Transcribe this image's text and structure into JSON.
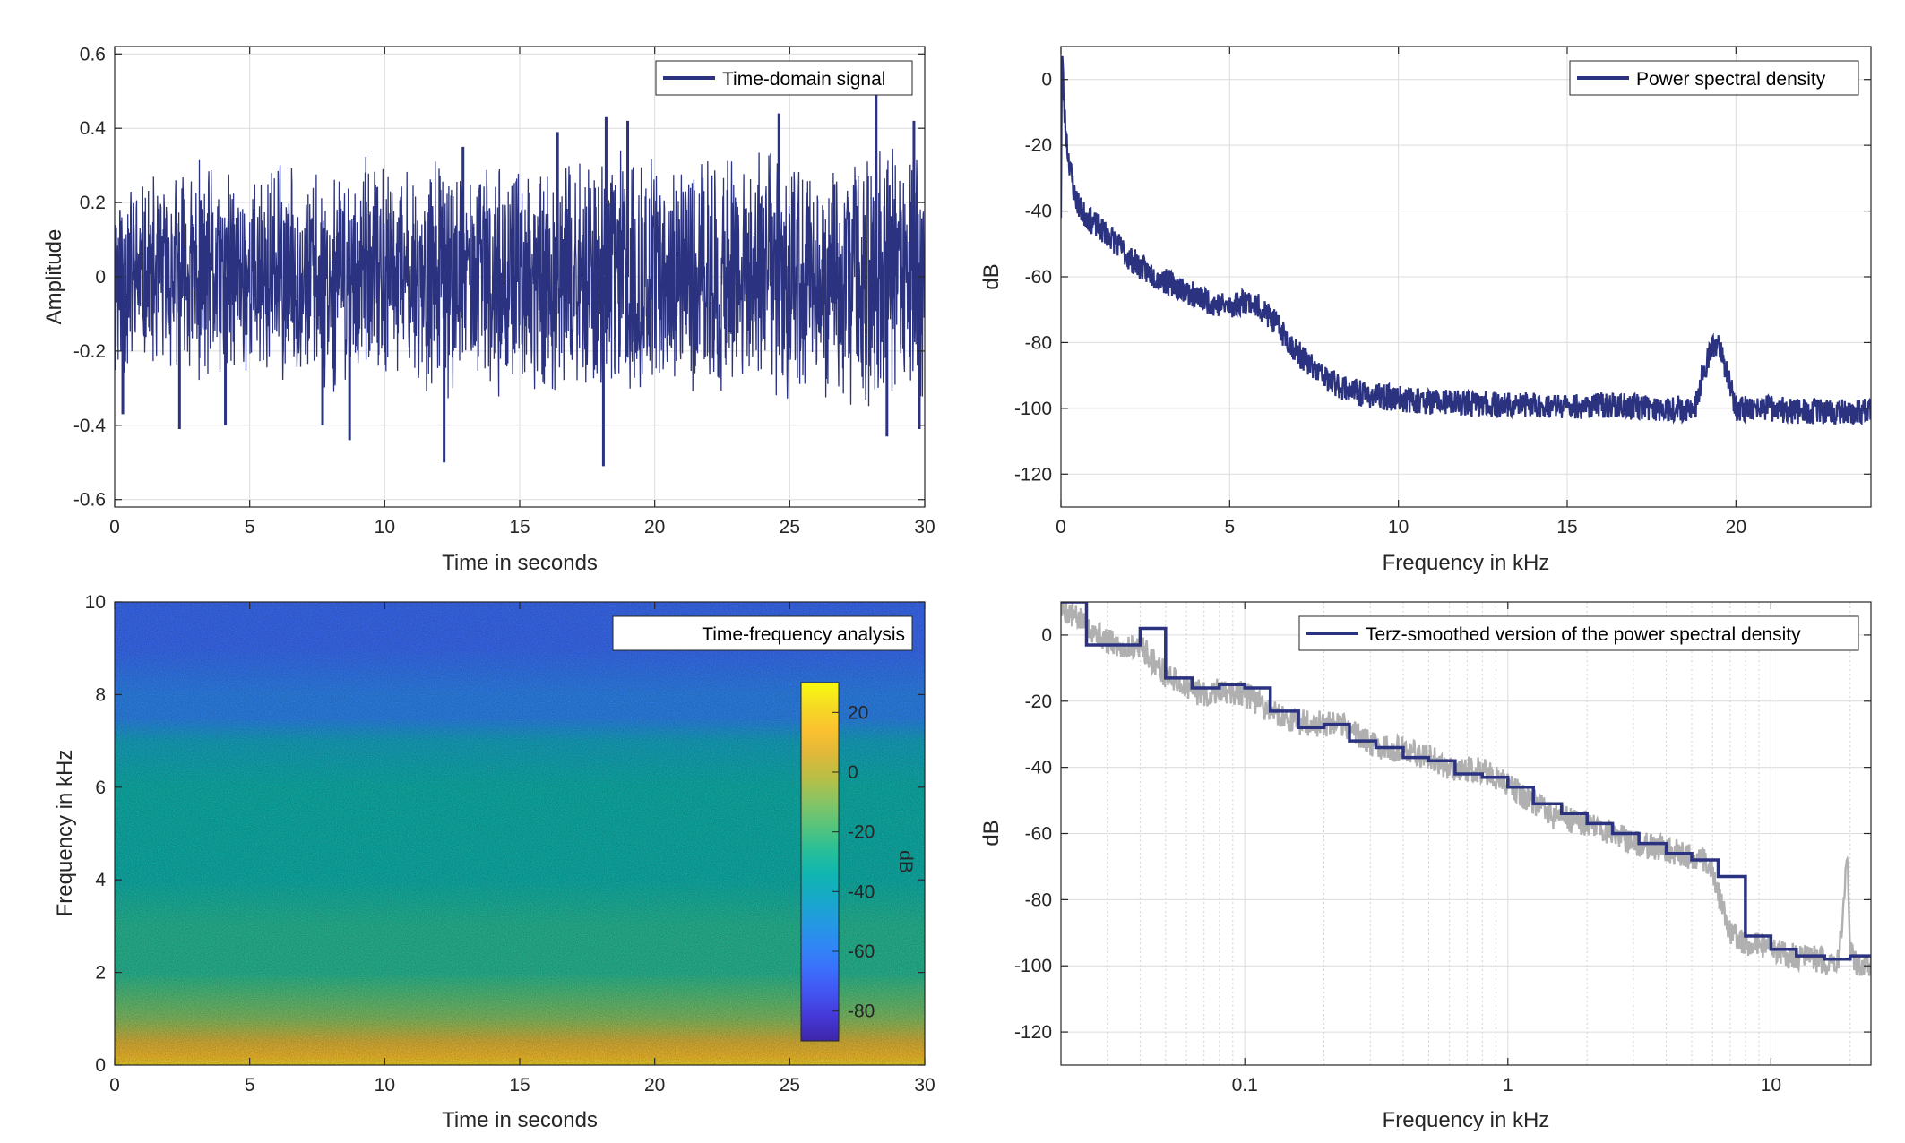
{
  "colors": {
    "signal": "#2b3280",
    "raw_psd": "#b0b0b0",
    "grid": "#dcdcdc",
    "axis": "#262626",
    "colormap": [
      "#3e26a8",
      "#4538d7",
      "#4254f0",
      "#3c6ffc",
      "#2f88f4",
      "#239ae0",
      "#17a9c7",
      "#10b6b0",
      "#29bf98",
      "#57c47c",
      "#87c465",
      "#b8bf46",
      "#e0b83a",
      "#fbc12f",
      "#f5db24",
      "#f9fb0e"
    ]
  },
  "chart_data": [
    {
      "id": "time-domain",
      "type": "line",
      "title": "",
      "xlabel": "Time in seconds",
      "ylabel": "Amplitude",
      "xlim": [
        0,
        30
      ],
      "ylim": [
        -0.62,
        0.62
      ],
      "xticks": [
        0,
        5,
        10,
        15,
        20,
        25,
        30
      ],
      "xtick_labels": [
        "0",
        "5",
        "10",
        "15",
        "20",
        "25",
        "30"
      ],
      "yticks": [
        -0.6,
        -0.4,
        -0.2,
        0,
        0.2,
        0.4,
        0.6
      ],
      "ytick_labels": [
        "-0.6",
        "-0.4",
        "-0.2",
        "0",
        "0.2",
        "0.4",
        "0.6"
      ],
      "grid": true,
      "legend_position": "top-right",
      "series": [
        {
          "name": "Time-domain signal",
          "color": "#2b3280",
          "envelope_x": [
            0,
            1,
            2,
            3,
            4,
            5,
            6,
            7,
            8,
            9,
            10,
            11,
            12,
            13,
            14,
            15,
            16,
            17,
            18,
            19,
            20,
            21,
            22,
            23,
            24,
            25,
            26,
            27,
            28,
            29,
            30
          ],
          "envelope_y": [
            0.35,
            0.27,
            0.29,
            0.33,
            0.31,
            0.29,
            0.34,
            0.29,
            0.32,
            0.32,
            0.34,
            0.3,
            0.38,
            0.3,
            0.34,
            0.3,
            0.37,
            0.31,
            0.37,
            0.4,
            0.33,
            0.31,
            0.38,
            0.32,
            0.37,
            0.35,
            0.33,
            0.36,
            0.42,
            0.4,
            0.35
          ],
          "peaks": [
            {
              "x": 0.3,
              "y": -0.37
            },
            {
              "x": 2.4,
              "y": -0.41
            },
            {
              "x": 4.1,
              "y": -0.4
            },
            {
              "x": 7.7,
              "y": -0.4
            },
            {
              "x": 8.7,
              "y": -0.44
            },
            {
              "x": 12.2,
              "y": -0.5
            },
            {
              "x": 12.9,
              "y": 0.35
            },
            {
              "x": 16.4,
              "y": 0.39
            },
            {
              "x": 18.1,
              "y": -0.51
            },
            {
              "x": 18.2,
              "y": 0.43
            },
            {
              "x": 19.0,
              "y": 0.42
            },
            {
              "x": 24.6,
              "y": 0.44
            },
            {
              "x": 28.2,
              "y": 0.49
            },
            {
              "x": 28.6,
              "y": -0.43
            },
            {
              "x": 29.6,
              "y": 0.42
            },
            {
              "x": 29.8,
              "y": -0.41
            }
          ]
        }
      ]
    },
    {
      "id": "psd",
      "type": "line",
      "title": "",
      "xlabel": "Frequency in kHz",
      "ylabel": "dB",
      "xlim": [
        0,
        24
      ],
      "ylim": [
        -130,
        10
      ],
      "xticks": [
        0,
        5,
        10,
        15,
        20
      ],
      "xtick_labels": [
        "0",
        "5",
        "10",
        "15",
        "20"
      ],
      "yticks": [
        0,
        -20,
        -40,
        -60,
        -80,
        -100,
        -120
      ],
      "ytick_labels": [
        "0",
        "-20",
        "-40",
        "-60",
        "-80",
        "-100",
        "-120"
      ],
      "grid": true,
      "legend_position": "top-right",
      "series": [
        {
          "name": "Power spectral density",
          "color": "#2b3280",
          "x": [
            0,
            0.03,
            0.1,
            0.2,
            0.4,
            0.6,
            1,
            1.5,
            2,
            2.5,
            3,
            3.5,
            4,
            4.5,
            5,
            5.5,
            6,
            6.5,
            7,
            7.5,
            8,
            8.5,
            9,
            10,
            11,
            12,
            13,
            14,
            15,
            16,
            17,
            18,
            18.8,
            19,
            19.3,
            19.5,
            19.7,
            20,
            21,
            22,
            23,
            24
          ],
          "y": [
            -40,
            10,
            -10,
            -22,
            -35,
            -40,
            -44,
            -48,
            -54,
            -58,
            -61,
            -63,
            -66,
            -68,
            -69,
            -67,
            -70,
            -76,
            -83,
            -88,
            -92,
            -94,
            -96,
            -97,
            -98,
            -98.5,
            -99,
            -99,
            -99.5,
            -99,
            -99.5,
            -100,
            -100,
            -90,
            -82,
            -80,
            -88,
            -100,
            -100,
            -101,
            -101,
            -101
          ],
          "band_width": 4
        }
      ]
    },
    {
      "id": "spectrogram",
      "type": "heatmap",
      "title": "",
      "xlabel": "Time in seconds",
      "ylabel": "Frequency in kHz",
      "xlim": [
        0,
        30
      ],
      "ylim": [
        0,
        10
      ],
      "xticks": [
        0,
        5,
        10,
        15,
        20,
        25,
        30
      ],
      "xtick_labels": [
        "0",
        "5",
        "10",
        "15",
        "20",
        "25",
        "30"
      ],
      "yticks": [
        0,
        2,
        4,
        6,
        8,
        10
      ],
      "ytick_labels": [
        "0",
        "2",
        "4",
        "6",
        "8",
        "10"
      ],
      "legend": "Time-frequency analysis",
      "legend_position": "top-right",
      "colorbar": {
        "label": "dB",
        "limits": [
          -90,
          30
        ],
        "ticks": [
          20,
          0,
          -20,
          -40,
          -60,
          -80
        ],
        "tick_labels": [
          "20",
          "0",
          "-20",
          "-40",
          "-60",
          "-80"
        ]
      },
      "profile_freq_khz": [
        0,
        0.2,
        0.5,
        1,
        1.5,
        2,
        3,
        4,
        5,
        6,
        7,
        7.5,
        8,
        9,
        10
      ],
      "profile_db": [
        20,
        12,
        3,
        -8,
        -18,
        -24,
        -30,
        -35,
        -38,
        -37,
        -45,
        -55,
        -60,
        -64,
        -66
      ]
    },
    {
      "id": "terz",
      "type": "line",
      "title": "",
      "xlabel": "Frequency in kHz",
      "ylabel": "dB",
      "xscale": "log",
      "xlim": [
        0.02,
        24
      ],
      "ylim": [
        -130,
        10
      ],
      "xticks": [
        0.1,
        1,
        10
      ],
      "xtick_labels": [
        "0.1",
        "1",
        "10"
      ],
      "yticks": [
        0,
        -20,
        -40,
        -60,
        -80,
        -100,
        -120
      ],
      "ytick_labels": [
        "0",
        "-20",
        "-40",
        "-60",
        "-80",
        "-100",
        "-120"
      ],
      "grid": true,
      "legend_position": "top-right",
      "series": [
        {
          "name": "",
          "role": "raw",
          "color": "#b0b0b0",
          "x": [
            0.02,
            0.025,
            0.03,
            0.035,
            0.04,
            0.045,
            0.05,
            0.06,
            0.07,
            0.08,
            0.1,
            0.12,
            0.15,
            0.2,
            0.25,
            0.3,
            0.4,
            0.5,
            0.6,
            0.8,
            1,
            1.2,
            1.5,
            2,
            2.5,
            3,
            4,
            5,
            5.5,
            6,
            6.5,
            7,
            8,
            10,
            12,
            15,
            17,
            18,
            18.5,
            19,
            19.5,
            20,
            21,
            24
          ],
          "y": [
            8,
            3,
            -2,
            -4,
            -3,
            -8,
            -12,
            -16,
            -18,
            -17,
            -18,
            -22,
            -26,
            -27,
            -28,
            -33,
            -35,
            -37,
            -40,
            -41,
            -45,
            -50,
            -55,
            -57,
            -60,
            -63,
            -65,
            -67,
            -68,
            -72,
            -82,
            -90,
            -93,
            -95,
            -97,
            -98,
            -99,
            -99,
            -90,
            -80,
            -65,
            -95,
            -99,
            -100
          ],
          "band_width": 4
        },
        {
          "name": "Terz-smoothed version of the power spectral density",
          "role": "smoothed",
          "color": "#2b3280",
          "steps": [
            [
              0.0315,
              -3
            ],
            [
              0.04,
              2
            ],
            [
              0.05,
              -13
            ],
            [
              0.063,
              -16
            ],
            [
              0.08,
              -15
            ],
            [
              0.1,
              -16
            ],
            [
              0.125,
              -23
            ],
            [
              0.16,
              -28
            ],
            [
              0.2,
              -27
            ],
            [
              0.25,
              -32
            ],
            [
              0.315,
              -34
            ],
            [
              0.4,
              -37
            ],
            [
              0.5,
              -38
            ],
            [
              0.63,
              -42
            ],
            [
              0.8,
              -43
            ],
            [
              1,
              -46
            ],
            [
              1.25,
              -51
            ],
            [
              1.6,
              -54
            ],
            [
              2,
              -57
            ],
            [
              2.5,
              -60
            ],
            [
              3.15,
              -63
            ],
            [
              4,
              -66
            ],
            [
              5,
              -68
            ],
            [
              6.3,
              -73
            ],
            [
              8,
              -91
            ],
            [
              10,
              -95
            ],
            [
              12.5,
              -97
            ],
            [
              16,
              -98
            ],
            [
              20,
              -97
            ],
            [
              24,
              -97
            ]
          ],
          "start_x": 0.0185,
          "start_top_x": 0.025
        }
      ]
    }
  ]
}
